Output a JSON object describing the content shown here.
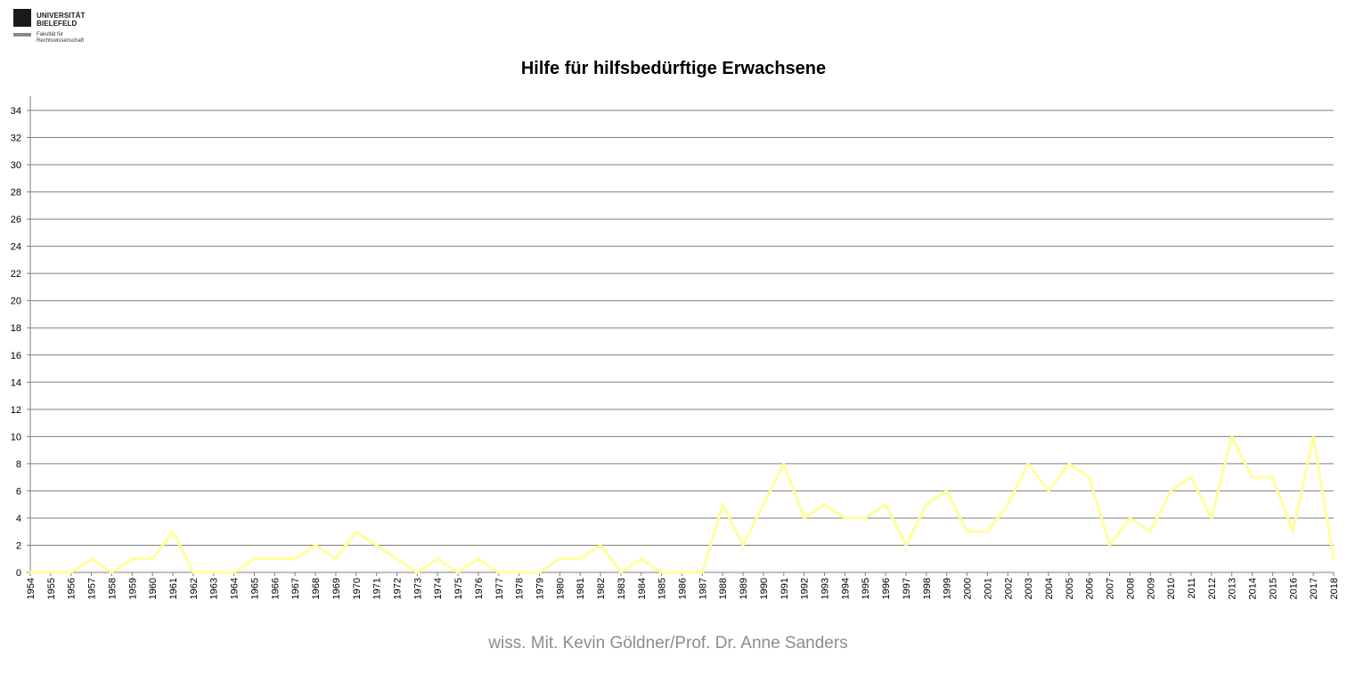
{
  "logo": {
    "line1": "UNIVERSITÄT",
    "line2": "BIELEFELD",
    "line3": "Fakultät für",
    "line4": "Rechtswissenschaft"
  },
  "footer": {
    "credit": "wiss. Mit. Kevin Göldner/Prof.  Dr. Anne Sanders"
  },
  "chart_data": {
    "type": "line",
    "title": "Hilfe für hilfsbedürftige Erwachsene",
    "xlabel": "",
    "ylabel": "",
    "ylim": [
      0,
      34
    ],
    "yticks": [
      0,
      2,
      4,
      6,
      8,
      10,
      12,
      14,
      16,
      18,
      20,
      22,
      24,
      26,
      28,
      30,
      32,
      34
    ],
    "grid": true,
    "legend": "none",
    "line_color": "#ffff99",
    "categories": [
      "1954",
      "1955",
      "1956",
      "1957",
      "1958",
      "1959",
      "1960",
      "1961",
      "1962",
      "1963",
      "1964",
      "1965",
      "1966",
      "1967",
      "1968",
      "1969",
      "1970",
      "1971",
      "1972",
      "1973",
      "1974",
      "1975",
      "1976",
      "1977",
      "1978",
      "1979",
      "1980",
      "1981",
      "1982",
      "1983",
      "1984",
      "1985",
      "1986",
      "1987",
      "1988",
      "1989",
      "1990",
      "1991",
      "1992",
      "1993",
      "1994",
      "1995",
      "1996",
      "1997",
      "1998",
      "1999",
      "2000",
      "2001",
      "2002",
      "2003",
      "2004",
      "2005",
      "2006",
      "2007",
      "2008",
      "2009",
      "2010",
      "2011",
      "2012",
      "2013",
      "2014",
      "2015",
      "2016",
      "2017",
      "2018"
    ],
    "series": [
      {
        "values": [
          0,
          0,
          0,
          1,
          0,
          1,
          1,
          3,
          0,
          0,
          0,
          1,
          1,
          1,
          2,
          1,
          3,
          2,
          1,
          0,
          1,
          0,
          1,
          0,
          0,
          0,
          1,
          1,
          2,
          0,
          1,
          0,
          0,
          0,
          5,
          2,
          5,
          8,
          4,
          5,
          4,
          4,
          5,
          2,
          5,
          6,
          3,
          3,
          5,
          8,
          6,
          8,
          7,
          2,
          4,
          3,
          6,
          7,
          4,
          10,
          7,
          7,
          3,
          10,
          1
        ]
      }
    ]
  }
}
